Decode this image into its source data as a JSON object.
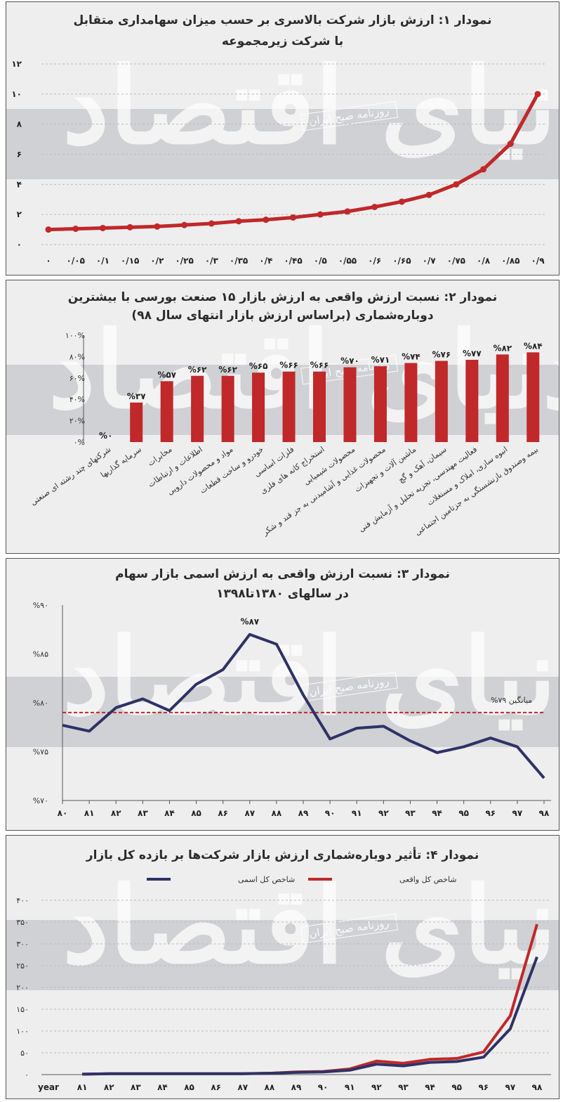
{
  "watermark": {
    "text": "دنیای اقتصاد",
    "box": "روزنامه صبح ایران"
  },
  "chart_data": [
    {
      "id": "c1",
      "type": "line",
      "title": "نمودار ۱: ارزش بازار شرکت بالاسری بر حسب میزان سهامداری متقابل",
      "subtitle": "با شرکت زیرمجموعه",
      "x": [
        0,
        0.05,
        0.1,
        0.15,
        0.2,
        0.25,
        0.3,
        0.35,
        0.4,
        0.45,
        0.5,
        0.55,
        0.6,
        0.65,
        0.7,
        0.75,
        0.8,
        0.85,
        0.9
      ],
      "x_tick_labels": [
        "۰",
        "۰/۰۵",
        "۰/۱",
        "۰/۱۵",
        "۰/۲",
        "۰/۲۵",
        "۰/۳",
        "۰/۳۵",
        "۰/۴",
        "۰/۴۵",
        "۰/۵",
        "۰/۵۵",
        "۰/۶",
        "۰/۶۵",
        "۰/۷",
        "۰/۷۵",
        "۰/۸",
        "۰/۸۵",
        "۰/۹"
      ],
      "values": [
        1.0,
        1.05,
        1.1,
        1.15,
        1.2,
        1.3,
        1.4,
        1.55,
        1.65,
        1.8,
        2.0,
        2.2,
        2.5,
        2.85,
        3.3,
        4.0,
        5.0,
        6.7,
        10.0
      ],
      "ylim": [
        0,
        12
      ],
      "y_ticks": [
        0,
        2,
        4,
        6,
        8,
        10,
        12
      ],
      "y_tick_labels": [
        "۰",
        "۲",
        "۴",
        "۶",
        "۸",
        "۱۰",
        "۱۲"
      ],
      "color": "#c0282a",
      "grid": true
    },
    {
      "id": "c2",
      "type": "bar",
      "title": "نمودار ۲: نسبت ارزش واقعی به ارزش بازار ۱۵ صنعت بورسی با بیشترین",
      "subtitle": "دوباره‌شماری (براساس ارزش بازار انتهای سال ۹۸)",
      "categories": [
        "شرکتهای چند رشته ای صنعتی",
        "سرمایه گذاریها",
        "مخابرات",
        "اطلاعات و ارتباطات",
        "مواد و محصولات دارویی",
        "خودرو و ساخت قطعات",
        "فلزات اساسی",
        "استخراج کانه های فلزی",
        "محصولات شیمیایی",
        "محصولات غذایی و آشامیدنی به جز قند و شکر",
        "ماشین آلات و تجهیزات",
        "سیمان، آهک و گچ",
        "فعالیت مهندسی، تجزیه تحلیل و آزمایش فنی",
        "انبوه سازی، املاک و مستغلات",
        "بیمه وصندوق بازنشستگی به جزتامین اجتماعی"
      ],
      "values": [
        0,
        37,
        57,
        62,
        62,
        65,
        66,
        66,
        70,
        71,
        74,
        76,
        77,
        82,
        84
      ],
      "value_labels": [
        "%۰",
        "%۳۷",
        "%۵۷",
        "%۶۲",
        "%۶۲",
        "%۶۵",
        "%۶۶",
        "%۶۶",
        "%۷۰",
        "%۷۱",
        "%۷۴",
        "%۷۶",
        "%۷۷",
        "%۸۲",
        "%۸۴"
      ],
      "ylim": [
        0,
        100
      ],
      "y_ticks": [
        0,
        20,
        40,
        60,
        80,
        100
      ],
      "y_tick_labels": [
        "۰%",
        "۲۰%",
        "۴۰%",
        "۶۰%",
        "۸۰%",
        "۱۰۰%"
      ],
      "color": "#c0282a"
    },
    {
      "id": "c3",
      "type": "line",
      "title": "نمودار ۳: نسبت ارزش واقعی به ارزش اسمی بازار سهام",
      "subtitle": "در سالهای ۱۳۸۰تا۱۳۹۸",
      "x": [
        "۸۰",
        "۸۱",
        "۸۲",
        "۸۳",
        "۸۴",
        "۸۵",
        "۸۶",
        "۸۷",
        "۸۸",
        "۸۹",
        "۹۰",
        "۹۱",
        "۹۲",
        "۹۳",
        "۹۴",
        "۹۵",
        "۹۶",
        "۹۷",
        "۹۸"
      ],
      "values": [
        77.7,
        77.1,
        79.5,
        80.4,
        79.2,
        81.9,
        83.4,
        87.0,
        86.0,
        80.8,
        76.3,
        77.4,
        77.6,
        76.1,
        74.9,
        75.5,
        76.4,
        75.5,
        72.3
      ],
      "peak_label": "%۸۷",
      "mean": 79,
      "mean_label": "میانگین ۷۹%",
      "ylim": [
        70,
        90
      ],
      "y_ticks": [
        70,
        75,
        80,
        85,
        90
      ],
      "y_tick_labels": [
        "%۷۰",
        "%۷۵",
        "%۸۰",
        "%۸۵",
        "%۹۰"
      ],
      "color": "#2e3266",
      "mean_color": "#c0282a"
    },
    {
      "id": "c4",
      "type": "line",
      "title": "نمودار ۴: تأثیر دوباره‌شماری ارزش بازار شرکت‌ها بر بازده کل بازار",
      "x_axis_name": "year",
      "x": [
        "۸۱",
        "۸۲",
        "۸۳",
        "۸۴",
        "۸۵",
        "۸۶",
        "۸۷",
        "۸۸",
        "۸۹",
        "۹۰",
        "۹۱",
        "۹۲",
        "۹۳",
        "۹۴",
        "۹۵",
        "۹۶",
        "۹۷",
        "۹۸"
      ],
      "series": [
        {
          "name": "شاخص کل واقعی",
          "color": "#c0282a",
          "values": [
            1,
            2,
            2,
            2,
            2,
            2,
            2,
            3,
            6,
            7,
            13,
            31,
            26,
            35,
            37,
            52,
            135,
            345
          ]
        },
        {
          "name": "شاخص کل اسمی",
          "color": "#2e3266",
          "values": [
            1,
            2,
            2,
            2,
            2,
            2,
            2,
            3,
            5,
            6,
            10,
            24,
            20,
            28,
            30,
            40,
            105,
            270
          ]
        }
      ],
      "ylim": [
        0,
        400
      ],
      "y_ticks": [
        0,
        50,
        100,
        150,
        200,
        250,
        300,
        350,
        400
      ],
      "y_tick_labels": [
        "۰",
        "۵۰",
        "۱۰۰",
        "۱۵۰",
        "۲۰۰",
        "۲۵۰",
        "۳۰۰",
        "۳۵۰",
        "۴۰۰"
      ],
      "legend_position": "top-right"
    }
  ]
}
